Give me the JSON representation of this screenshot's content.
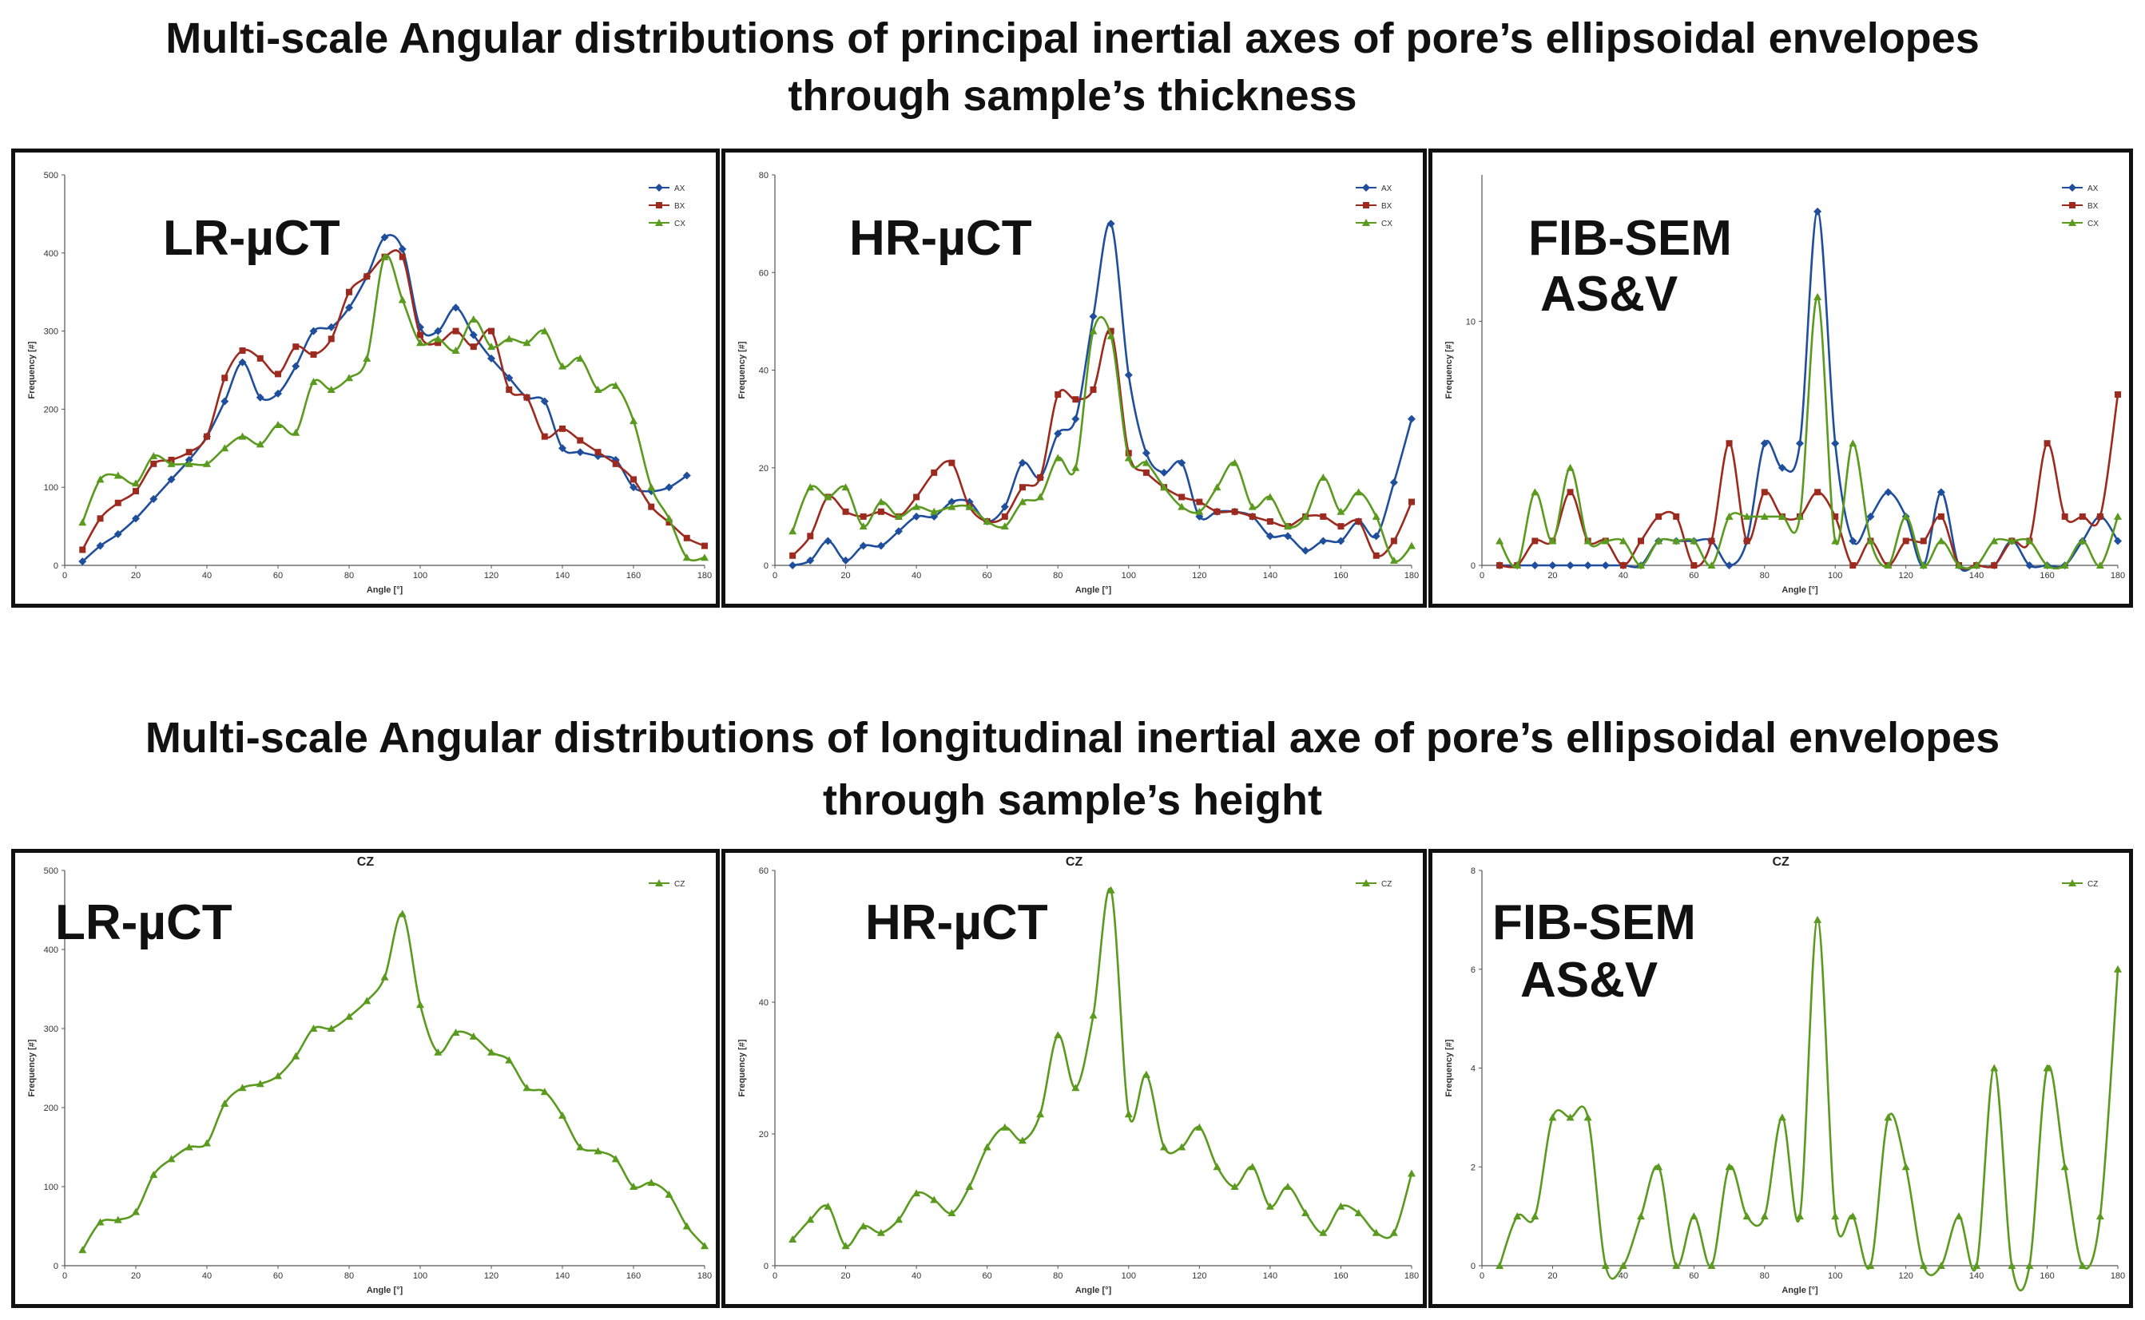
{
  "titles": {
    "top_line1": "Multi-scale Angular distributions of principal inertial axes of pore’s ellipsoidal envelopes",
    "top_line2": "through sample’s thickness",
    "bottom_line1": "Multi-scale Angular distributions of longitudinal inertial axe of pore’s ellipsoidal envelopes",
    "bottom_line2": "through sample’s height"
  },
  "colors": {
    "AX": "#1f4e9c",
    "BX": "#9c2a1e",
    "CX": "#5a9a1e",
    "CZ": "#5a9a1e"
  },
  "chart_data": [
    {
      "type": "line",
      "id": "top-lr",
      "label_line1": "LR-µCT",
      "label_line2": "",
      "title": "",
      "xlabel": "Angle [°]",
      "ylabel": "Frequency [#]",
      "xlim": [
        0,
        180
      ],
      "ylim": [
        0,
        500
      ],
      "xticks": [
        0,
        20,
        40,
        60,
        80,
        100,
        120,
        140,
        160,
        180
      ],
      "yticks": [
        0,
        100,
        200,
        300,
        400,
        500
      ],
      "legend_position": "top-right",
      "series": [
        {
          "name": "AX",
          "x": [
            5,
            10,
            15,
            20,
            25,
            30,
            35,
            40,
            45,
            50,
            55,
            60,
            65,
            70,
            75,
            80,
            85,
            90,
            95,
            100,
            105,
            110,
            115,
            120,
            125,
            130,
            135,
            140,
            145,
            150,
            155,
            160,
            165,
            170,
            175
          ],
          "values": [
            5,
            25,
            40,
            60,
            85,
            110,
            135,
            165,
            210,
            260,
            215,
            220,
            255,
            300,
            305,
            330,
            370,
            420,
            405,
            305,
            300,
            330,
            295,
            265,
            240,
            215,
            210,
            150,
            145,
            140,
            135,
            100,
            95,
            100,
            115
          ]
        },
        {
          "name": "BX",
          "x": [
            5,
            10,
            15,
            20,
            25,
            30,
            35,
            40,
            45,
            50,
            55,
            60,
            65,
            70,
            75,
            80,
            85,
            90,
            95,
            100,
            105,
            110,
            115,
            120,
            125,
            130,
            135,
            140,
            145,
            150,
            155,
            160,
            165,
            170,
            175,
            180
          ],
          "values": [
            20,
            60,
            80,
            95,
            130,
            135,
            145,
            165,
            240,
            275,
            265,
            245,
            280,
            270,
            290,
            350,
            370,
            395,
            395,
            295,
            285,
            300,
            280,
            300,
            225,
            215,
            165,
            175,
            160,
            145,
            130,
            110,
            75,
            55,
            35,
            25
          ]
        },
        {
          "name": "CX",
          "x": [
            5,
            10,
            15,
            20,
            25,
            30,
            35,
            40,
            45,
            50,
            55,
            60,
            65,
            70,
            75,
            80,
            85,
            90,
            95,
            100,
            105,
            110,
            115,
            120,
            125,
            130,
            135,
            140,
            145,
            150,
            155,
            160,
            165,
            170,
            175,
            180
          ],
          "values": [
            55,
            110,
            115,
            105,
            140,
            130,
            130,
            130,
            150,
            165,
            155,
            180,
            170,
            235,
            225,
            240,
            265,
            395,
            340,
            285,
            290,
            275,
            315,
            280,
            290,
            285,
            300,
            255,
            265,
            225,
            230,
            185,
            100,
            60,
            10,
            10
          ]
        }
      ]
    },
    {
      "type": "line",
      "id": "top-hr",
      "label_line1": "HR-µCT",
      "label_line2": "",
      "title": "",
      "xlabel": "Angle [°]",
      "ylabel": "Frequency [#]",
      "xlim": [
        0,
        180
      ],
      "ylim": [
        0,
        80
      ],
      "xticks": [
        0,
        20,
        40,
        60,
        80,
        100,
        120,
        140,
        160,
        180
      ],
      "yticks": [
        0,
        20,
        40,
        60,
        80
      ],
      "legend_position": "top-right",
      "series": [
        {
          "name": "AX",
          "x": [
            5,
            10,
            15,
            20,
            25,
            30,
            35,
            40,
            45,
            50,
            55,
            60,
            65,
            70,
            75,
            80,
            85,
            90,
            95,
            100,
            105,
            110,
            115,
            120,
            125,
            130,
            135,
            140,
            145,
            150,
            155,
            160,
            165,
            170,
            175,
            180
          ],
          "values": [
            0,
            1,
            5,
            1,
            4,
            4,
            7,
            10,
            10,
            13,
            13,
            9,
            12,
            21,
            18,
            27,
            30,
            51,
            70,
            39,
            23,
            19,
            21,
            10,
            11,
            11,
            10,
            6,
            6,
            3,
            5,
            5,
            9,
            6,
            17,
            30
          ]
        },
        {
          "name": "BX",
          "x": [
            5,
            10,
            15,
            20,
            25,
            30,
            35,
            40,
            45,
            50,
            55,
            60,
            65,
            70,
            75,
            80,
            85,
            90,
            95,
            100,
            105,
            110,
            115,
            120,
            125,
            130,
            135,
            140,
            145,
            150,
            155,
            160,
            165,
            170,
            175,
            180
          ],
          "values": [
            2,
            6,
            14,
            11,
            10,
            11,
            10,
            14,
            19,
            21,
            12,
            9,
            10,
            16,
            18,
            35,
            34,
            36,
            48,
            23,
            19,
            16,
            14,
            13,
            11,
            11,
            10,
            9,
            8,
            10,
            10,
            8,
            9,
            2,
            5,
            13
          ]
        },
        {
          "name": "CX",
          "x": [
            5,
            10,
            15,
            20,
            25,
            30,
            35,
            40,
            45,
            50,
            55,
            60,
            65,
            70,
            75,
            80,
            85,
            90,
            95,
            100,
            105,
            110,
            115,
            120,
            125,
            130,
            135,
            140,
            145,
            150,
            155,
            160,
            165,
            170,
            175,
            180
          ],
          "values": [
            7,
            16,
            14,
            16,
            8,
            13,
            10,
            12,
            11,
            12,
            12,
            9,
            8,
            13,
            14,
            22,
            20,
            48,
            47,
            22,
            21,
            16,
            12,
            11,
            16,
            21,
            12,
            14,
            8,
            10,
            18,
            11,
            15,
            10,
            1,
            4
          ]
        }
      ]
    },
    {
      "type": "line",
      "id": "top-fib",
      "label_line1": "FIB-SEM",
      "label_line2": "AS&V",
      "title": "",
      "xlabel": "Angle [°]",
      "ylabel": "Frequency [#]",
      "xlim": [
        0,
        180
      ],
      "ylim": [
        0,
        16
      ],
      "xticks": [
        0,
        20,
        40,
        60,
        80,
        100,
        120,
        140,
        160,
        180
      ],
      "yticks": [
        0,
        10
      ],
      "legend_position": "top-right",
      "series": [
        {
          "name": "AX",
          "x": [
            5,
            10,
            15,
            20,
            25,
            30,
            35,
            40,
            45,
            50,
            55,
            60,
            65,
            70,
            75,
            80,
            85,
            90,
            95,
            100,
            105,
            110,
            115,
            120,
            125,
            130,
            135,
            140,
            145,
            150,
            155,
            160,
            165,
            170,
            175,
            180
          ],
          "values": [
            0,
            0,
            0,
            0,
            0,
            0,
            0,
            0,
            0,
            1,
            1,
            1,
            1,
            0,
            1,
            5,
            4,
            5,
            14.5,
            5,
            1,
            2,
            3,
            2,
            0,
            3,
            0,
            0,
            0,
            1,
            0,
            0,
            0,
            1,
            2,
            1
          ]
        },
        {
          "name": "BX",
          "x": [
            5,
            10,
            15,
            20,
            25,
            30,
            35,
            40,
            45,
            50,
            55,
            60,
            65,
            70,
            75,
            80,
            85,
            90,
            95,
            100,
            105,
            110,
            115,
            120,
            125,
            130,
            135,
            140,
            145,
            150,
            155,
            160,
            165,
            170,
            175,
            180
          ],
          "values": [
            0,
            0,
            1,
            1,
            3,
            1,
            1,
            0,
            1,
            2,
            2,
            0,
            1,
            5,
            1,
            3,
            2,
            2,
            3,
            2,
            0,
            1,
            0,
            1,
            1,
            2,
            0,
            0,
            0,
            1,
            1,
            5,
            2,
            2,
            2,
            7
          ]
        },
        {
          "name": "CX",
          "x": [
            5,
            10,
            15,
            20,
            25,
            30,
            35,
            40,
            45,
            50,
            55,
            60,
            65,
            70,
            75,
            80,
            85,
            90,
            95,
            100,
            105,
            110,
            115,
            120,
            125,
            130,
            135,
            140,
            145,
            150,
            155,
            160,
            165,
            170,
            175,
            180
          ],
          "values": [
            1,
            0,
            3,
            1,
            4,
            1,
            1,
            1,
            0,
            1,
            1,
            1,
            0,
            2,
            2,
            2,
            2,
            2,
            11,
            1,
            5,
            1,
            0,
            2,
            0,
            1,
            0,
            0,
            1,
            1,
            1,
            0,
            0,
            1,
            0,
            2
          ]
        }
      ]
    },
    {
      "type": "line",
      "id": "bot-lr",
      "label_line1": "LR-µCT",
      "label_line2": "",
      "title": "CZ",
      "xlabel": "Angle [°]",
      "ylabel": "Frequency [#]",
      "xlim": [
        0,
        180
      ],
      "ylim": [
        0,
        500
      ],
      "xticks": [
        0,
        20,
        40,
        60,
        80,
        100,
        120,
        140,
        160,
        180
      ],
      "yticks": [
        0,
        100,
        200,
        300,
        400,
        500
      ],
      "legend_position": "top-right",
      "series": [
        {
          "name": "CZ",
          "x": [
            5,
            10,
            15,
            20,
            25,
            30,
            35,
            40,
            45,
            50,
            55,
            60,
            65,
            70,
            75,
            80,
            85,
            90,
            95,
            100,
            105,
            110,
            115,
            120,
            125,
            130,
            135,
            140,
            145,
            150,
            155,
            160,
            165,
            170,
            175,
            180
          ],
          "values": [
            20,
            55,
            58,
            68,
            115,
            135,
            150,
            155,
            205,
            225,
            230,
            240,
            265,
            300,
            300,
            315,
            335,
            365,
            445,
            330,
            270,
            295,
            290,
            270,
            260,
            225,
            220,
            190,
            150,
            145,
            135,
            100,
            105,
            90,
            50,
            25
          ]
        }
      ]
    },
    {
      "type": "line",
      "id": "bot-hr",
      "label_line1": "HR-µCT",
      "label_line2": "",
      "title": "CZ",
      "xlabel": "Angle [°]",
      "ylabel": "Frequency [#]",
      "xlim": [
        0,
        180
      ],
      "ylim": [
        0,
        60
      ],
      "xticks": [
        0,
        20,
        40,
        60,
        80,
        100,
        120,
        140,
        160,
        180
      ],
      "yticks": [
        0,
        20,
        40,
        60
      ],
      "legend_position": "top-right",
      "series": [
        {
          "name": "CZ",
          "x": [
            5,
            10,
            15,
            20,
            25,
            30,
            35,
            40,
            45,
            50,
            55,
            60,
            65,
            70,
            75,
            80,
            85,
            90,
            95,
            100,
            105,
            110,
            115,
            120,
            125,
            130,
            135,
            140,
            145,
            150,
            155,
            160,
            165,
            170,
            175,
            180
          ],
          "values": [
            4,
            7,
            9,
            3,
            6,
            5,
            7,
            11,
            10,
            8,
            12,
            18,
            21,
            19,
            23,
            35,
            27,
            38,
            57,
            23,
            29,
            18,
            18,
            21,
            15,
            12,
            15,
            9,
            12,
            8,
            5,
            9,
            8,
            5,
            5,
            14
          ]
        }
      ]
    },
    {
      "type": "line",
      "id": "bot-fib",
      "label_line1": "FIB-SEM",
      "label_line2": "AS&V",
      "title": "CZ",
      "xlabel": "Angle [°]",
      "ylabel": "Frequency [#]",
      "xlim": [
        0,
        180
      ],
      "ylim": [
        0,
        8
      ],
      "xticks": [
        0,
        20,
        40,
        60,
        80,
        100,
        120,
        140,
        160,
        180
      ],
      "yticks": [
        0,
        2,
        4,
        6,
        8
      ],
      "legend_position": "top-right",
      "series": [
        {
          "name": "CZ",
          "x": [
            5,
            10,
            15,
            20,
            25,
            30,
            35,
            40,
            45,
            50,
            55,
            60,
            65,
            70,
            75,
            80,
            85,
            90,
            95,
            100,
            105,
            110,
            115,
            120,
            125,
            130,
            135,
            140,
            145,
            150,
            155,
            160,
            165,
            170,
            175,
            180
          ],
          "values": [
            0,
            1,
            1,
            3,
            3,
            3,
            0,
            0,
            1,
            2,
            0,
            1,
            0,
            2,
            1,
            1,
            3,
            1,
            7,
            1,
            1,
            0,
            3,
            2,
            0,
            0,
            1,
            0,
            4,
            0,
            0,
            4,
            2,
            0,
            1,
            6
          ]
        }
      ]
    }
  ]
}
